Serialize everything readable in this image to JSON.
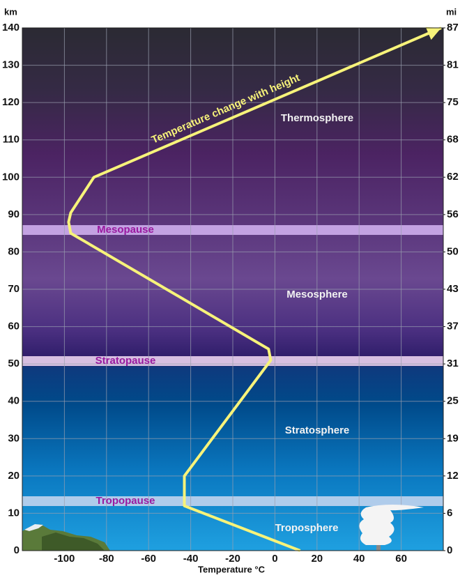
{
  "chart_data": {
    "type": "line",
    "y_label": "km",
    "y2_label": "mi",
    "x_label": "Temperature °C",
    "annotation": "Temperature change with height",
    "x": [
      12,
      -43,
      -43,
      -2,
      -3,
      -97,
      -98,
      -97,
      -86,
      79
    ],
    "values": [
      0,
      12,
      20,
      51,
      54,
      85,
      88,
      90.5,
      100,
      140
    ],
    "color": "#f7f37a",
    "xlim": [
      -120,
      80
    ],
    "xticks": [
      -100,
      -80,
      -60,
      -40,
      -20,
      0,
      20,
      40,
      60
    ],
    "ylim": [
      0,
      140
    ],
    "yticks": [
      0,
      10,
      20,
      30,
      40,
      50,
      60,
      70,
      80,
      90,
      100,
      110,
      120,
      130,
      140
    ],
    "y2lim": [
      0,
      86.99
    ],
    "y2ticks": [
      0,
      {
        "value": 6.21,
        "label": "6"
      },
      {
        "value": 12.43,
        "label": "12"
      },
      {
        "value": 18.64,
        "label": "19"
      },
      {
        "value": 24.85,
        "label": "25"
      },
      {
        "value": 31.07,
        "label": "31"
      },
      {
        "value": 37.28,
        "label": "37"
      },
      {
        "value": 43.5,
        "label": "43"
      },
      {
        "value": 49.71,
        "label": "50"
      },
      {
        "value": 55.92,
        "label": "56"
      },
      {
        "value": 62.14,
        "label": "62"
      },
      {
        "value": 68.35,
        "label": "68"
      },
      {
        "value": 74.56,
        "label": "75"
      },
      {
        "value": 80.78,
        "label": "81"
      },
      {
        "value": 86.99,
        "label": "87"
      }
    ],
    "grid": true,
    "pause_labels": [
      "Mesopause",
      "Stratopause",
      "Tropopause"
    ],
    "regions": [
      "Thermosphere",
      "Mesosphere",
      "Stratosphere",
      "Troposphere"
    ]
  }
}
